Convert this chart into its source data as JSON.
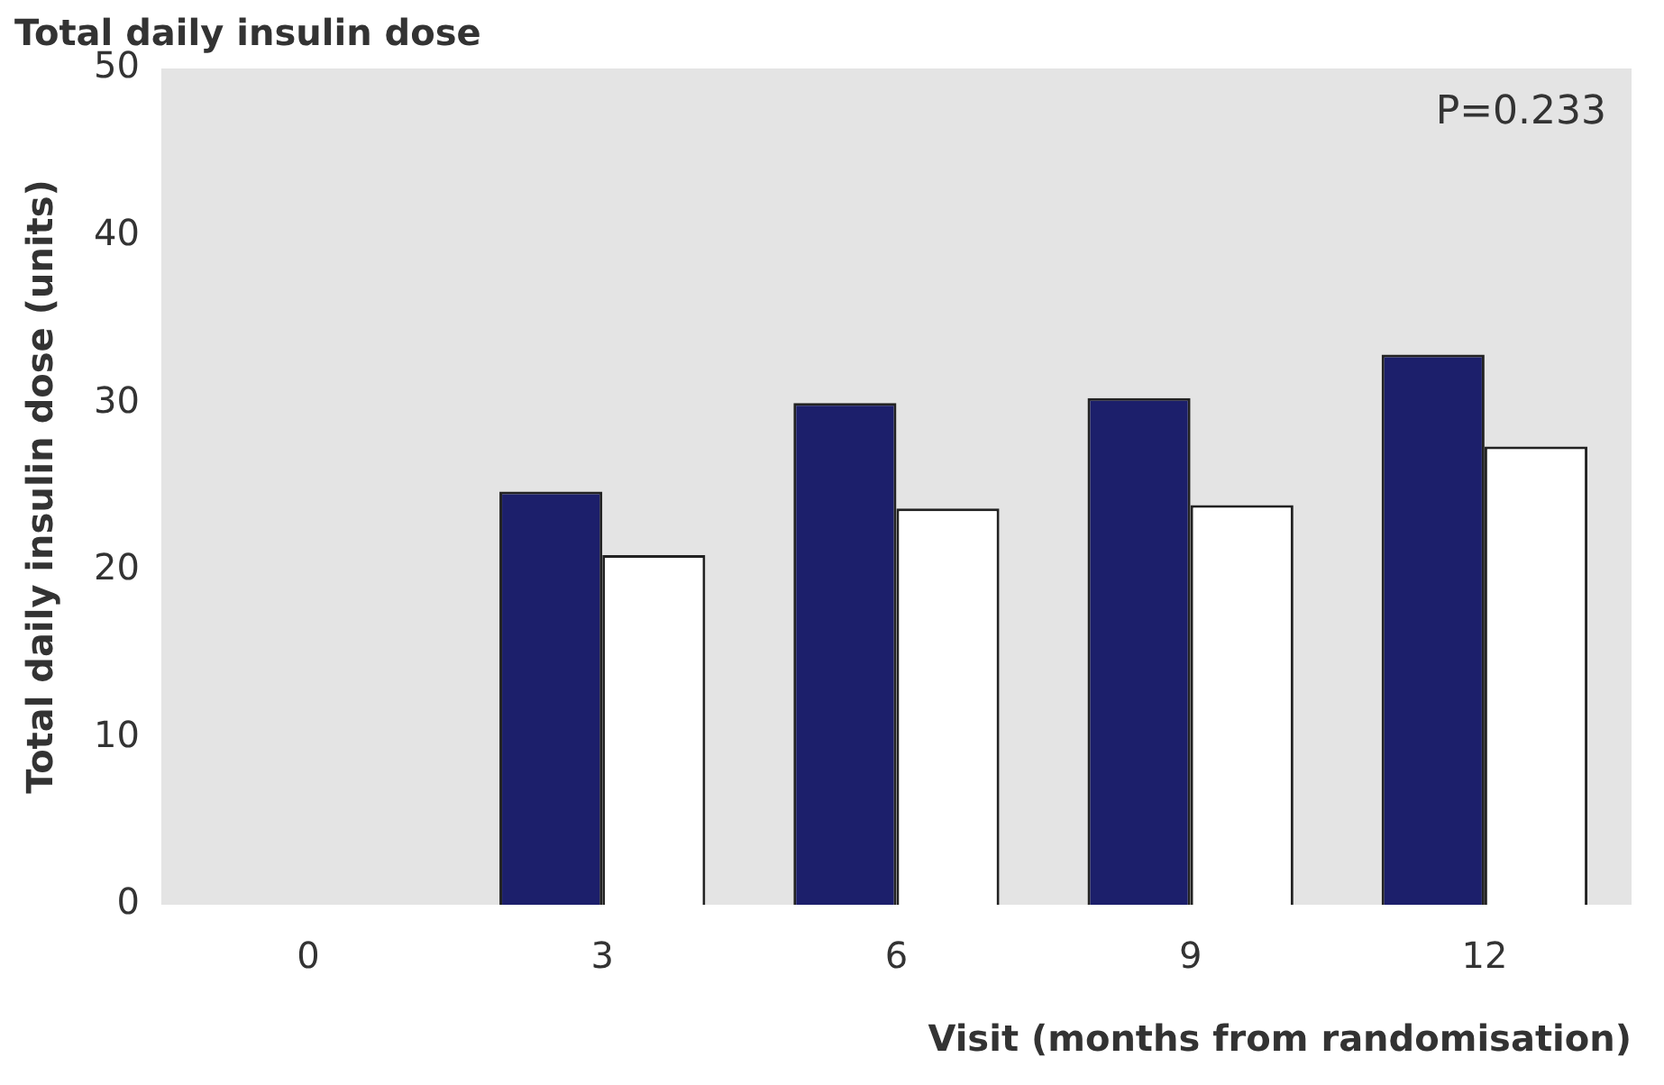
{
  "chart_data": {
    "type": "bar",
    "title": "Total daily insulin dose",
    "xlabel": "Visit (months from randomisation)",
    "ylabel": "Total daily insulin dose (units)",
    "categories": [
      "0",
      "3",
      "6",
      "9",
      "12"
    ],
    "series": [
      {
        "color": "#1c1f6b",
        "values": [
          null,
          24.7,
          30.0,
          30.3,
          32.9
        ]
      },
      {
        "color": "#ffffff",
        "values": [
          null,
          20.9,
          23.7,
          23.9,
          27.4
        ]
      }
    ],
    "ylim": [
      0,
      50
    ],
    "yticks": [
      0,
      10,
      20,
      30,
      40,
      50
    ],
    "grid": false,
    "legend": false,
    "annotations": [
      "P=0.233"
    ]
  }
}
